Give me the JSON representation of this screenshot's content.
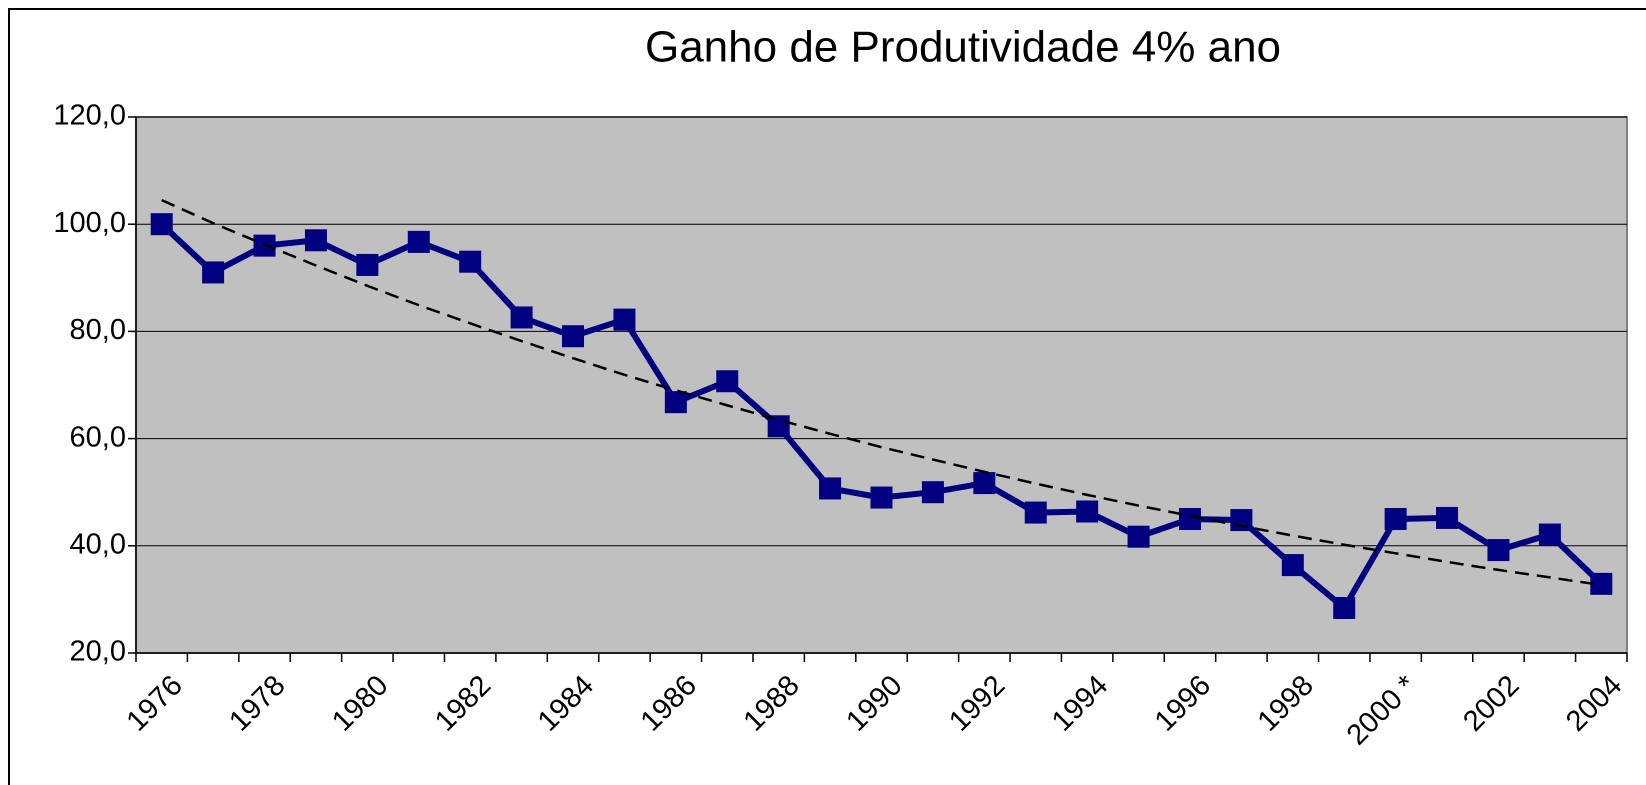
{
  "chart_data": {
    "type": "line",
    "title": "Ganho de Produtividade 4% ano",
    "categories": [
      "1976",
      null,
      "1978",
      null,
      "1980",
      null,
      "1982",
      null,
      "1984",
      null,
      "1986",
      null,
      "1988",
      null,
      "1990",
      null,
      "1992",
      null,
      "1994",
      null,
      "1996",
      null,
      "1998",
      null,
      "2000 *",
      null,
      "2002",
      null,
      "2004"
    ],
    "values": [
      100,
      91,
      96,
      97,
      92.4,
      96.7,
      93,
      82.6,
      79.1,
      82.2,
      66.8,
      70.7,
      62.3,
      50.7,
      49,
      50,
      51.7,
      46.2,
      46.4,
      41.7,
      45,
      44.8,
      36.4,
      28.4,
      45,
      45.2,
      39.2,
      42.1,
      32.9
    ],
    "color": "#000080",
    "trendline": {
      "values": [
        104.5,
        100.2,
        96.2,
        92.3,
        88.5,
        84.9,
        81.5,
        78.2,
        75.0,
        71.9,
        69.0,
        66.2,
        63.5,
        60.9,
        58.4,
        56.1,
        53.8,
        51.6,
        49.5,
        47.5,
        45.6,
        43.7,
        41.9,
        40.2,
        38.6,
        37.0,
        35.5,
        34.1,
        32.7
      ],
      "color": "#000000",
      "dashed": true
    },
    "ylim": [
      20,
      120
    ],
    "yticks": [
      {
        "value": 20,
        "label": "20,0"
      },
      {
        "value": 40,
        "label": "40,0"
      },
      {
        "value": 60,
        "label": "60,0"
      },
      {
        "value": 80,
        "label": "80,0"
      },
      {
        "value": 100,
        "label": "100,0"
      },
      {
        "value": 120,
        "label": "120,0"
      }
    ],
    "grid": true,
    "plot_background": "#c0c0c0"
  }
}
